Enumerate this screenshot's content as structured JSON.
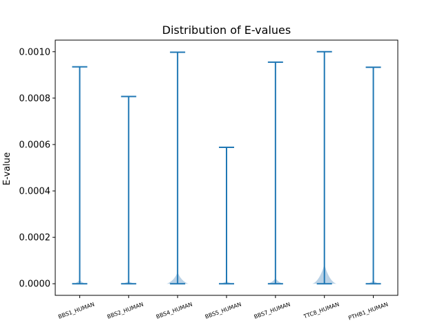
{
  "chart_data": {
    "type": "violin",
    "title": "Distribution of E-values",
    "xlabel": "",
    "ylabel": "E-value",
    "ylim": [
      -5e-05,
      0.00105
    ],
    "yticks": [
      "0.0000",
      "0.0002",
      "0.0004",
      "0.0006",
      "0.0008",
      "0.0010"
    ],
    "ytick_values": [
      0,
      0.0002,
      0.0004,
      0.0006,
      0.0008,
      0.001
    ],
    "categories": [
      "BBS1_HUMAN",
      "BBS2_HUMAN",
      "BBS4_HUMAN",
      "BBS5_HUMAN",
      "BBS7_HUMAN",
      "TTC8_HUMAN",
      "PTHB1_HUMAN"
    ],
    "min": [
      0,
      0,
      0,
      0,
      0,
      0,
      0
    ],
    "max": [
      0.000935,
      0.000807,
      0.000998,
      0.000588,
      0.000955,
      0.001,
      0.000933
    ],
    "density_peak_height": [
      1.8e-05,
      1.2e-05,
      5e-05,
      1.2e-05,
      2.5e-05,
      8.5e-05,
      1.5e-05
    ],
    "density_half_width_frac": [
      0.22,
      0.22,
      0.45,
      0.22,
      0.3,
      0.5,
      0.22
    ],
    "grid": false,
    "legend": "none",
    "colors": {
      "line": "#1f77b4",
      "fill": "#b3cde3",
      "axis": "#000000"
    }
  }
}
